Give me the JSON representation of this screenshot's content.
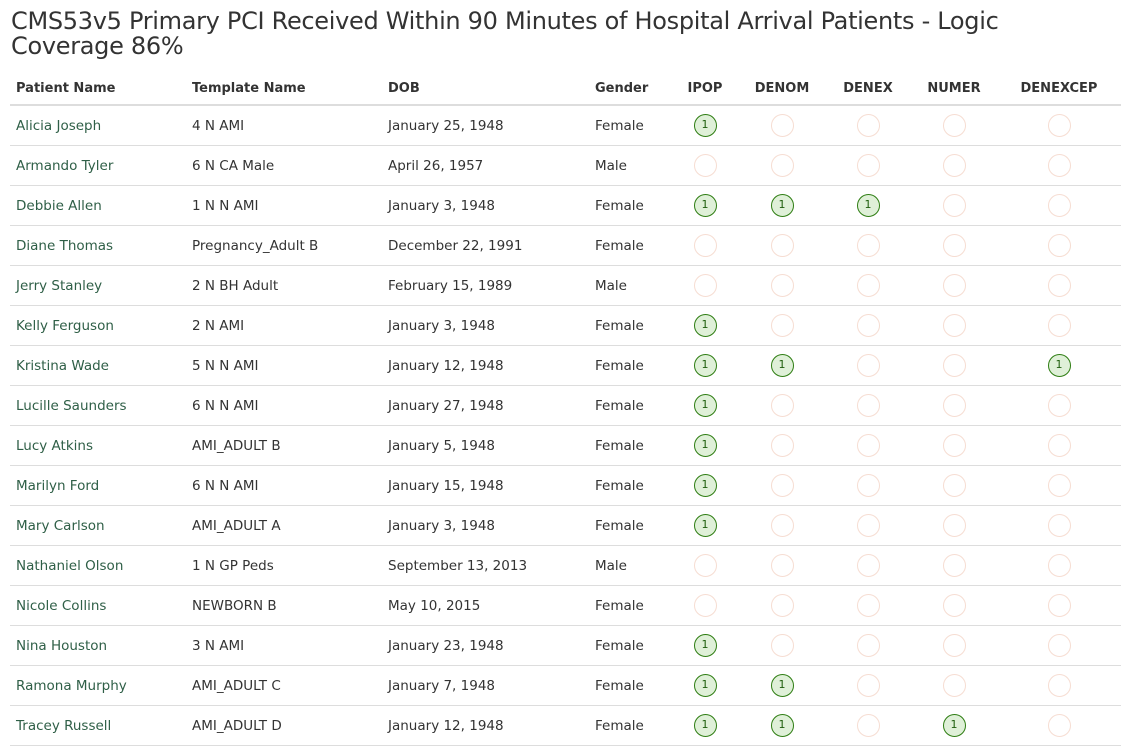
{
  "page": {
    "title": "CMS53v5 Primary PCI Received Within 90 Minutes of Hospital Arrival Patients - Logic Coverage 86%"
  },
  "colors": {
    "hit_border": "#2e7d12",
    "hit_fill": "#dff0d8",
    "miss_border": "#f6ddd2",
    "link": "#2f5f47"
  },
  "table": {
    "headers": {
      "patient_name": "Patient Name",
      "template_name": "Template Name",
      "dob": "DOB",
      "gender": "Gender",
      "ipop": "IPOP",
      "denom": "DENOM",
      "denex": "DENEX",
      "numer": "NUMER",
      "denexcep": "DENEXCEP"
    },
    "rows": [
      {
        "name": "Alicia Joseph",
        "template": "4 N AMI",
        "dob": "January 25, 1948",
        "gender": "Female",
        "ipop": "1",
        "denom": "",
        "denex": "",
        "numer": "",
        "denexcep": ""
      },
      {
        "name": "Armando Tyler",
        "template": "6 N CA Male",
        "dob": "April 26, 1957",
        "gender": "Male",
        "ipop": "",
        "denom": "",
        "denex": "",
        "numer": "",
        "denexcep": ""
      },
      {
        "name": "Debbie Allen",
        "template": "1 N N AMI",
        "dob": "January 3, 1948",
        "gender": "Female",
        "ipop": "1",
        "denom": "1",
        "denex": "1",
        "numer": "",
        "denexcep": ""
      },
      {
        "name": "Diane Thomas",
        "template": "Pregnancy_Adult B",
        "dob": "December 22, 1991",
        "gender": "Female",
        "ipop": "",
        "denom": "",
        "denex": "",
        "numer": "",
        "denexcep": ""
      },
      {
        "name": "Jerry Stanley",
        "template": "2 N BH Adult",
        "dob": "February 15, 1989",
        "gender": "Male",
        "ipop": "",
        "denom": "",
        "denex": "",
        "numer": "",
        "denexcep": ""
      },
      {
        "name": "Kelly Ferguson",
        "template": "2 N AMI",
        "dob": "January 3, 1948",
        "gender": "Female",
        "ipop": "1",
        "denom": "",
        "denex": "",
        "numer": "",
        "denexcep": ""
      },
      {
        "name": "Kristina Wade",
        "template": "5 N N AMI",
        "dob": "January 12, 1948",
        "gender": "Female",
        "ipop": "1",
        "denom": "1",
        "denex": "",
        "numer": "",
        "denexcep": "1"
      },
      {
        "name": "Lucille Saunders",
        "template": "6 N N AMI",
        "dob": "January 27, 1948",
        "gender": "Female",
        "ipop": "1",
        "denom": "",
        "denex": "",
        "numer": "",
        "denexcep": ""
      },
      {
        "name": "Lucy Atkins",
        "template": "AMI_ADULT B",
        "dob": "January 5, 1948",
        "gender": "Female",
        "ipop": "1",
        "denom": "",
        "denex": "",
        "numer": "",
        "denexcep": ""
      },
      {
        "name": "Marilyn Ford",
        "template": "6 N N AMI",
        "dob": "January 15, 1948",
        "gender": "Female",
        "ipop": "1",
        "denom": "",
        "denex": "",
        "numer": "",
        "denexcep": ""
      },
      {
        "name": "Mary Carlson",
        "template": "AMI_ADULT A",
        "dob": "January 3, 1948",
        "gender": "Female",
        "ipop": "1",
        "denom": "",
        "denex": "",
        "numer": "",
        "denexcep": ""
      },
      {
        "name": "Nathaniel Olson",
        "template": "1 N GP Peds",
        "dob": "September 13, 2013",
        "gender": "Male",
        "ipop": "",
        "denom": "",
        "denex": "",
        "numer": "",
        "denexcep": ""
      },
      {
        "name": "Nicole Collins",
        "template": "NEWBORN B",
        "dob": "May 10, 2015",
        "gender": "Female",
        "ipop": "",
        "denom": "",
        "denex": "",
        "numer": "",
        "denexcep": ""
      },
      {
        "name": "Nina Houston",
        "template": "3 N AMI",
        "dob": "January 23, 1948",
        "gender": "Female",
        "ipop": "1",
        "denom": "",
        "denex": "",
        "numer": "",
        "denexcep": ""
      },
      {
        "name": "Ramona Murphy",
        "template": "AMI_ADULT C",
        "dob": "January 7, 1948",
        "gender": "Female",
        "ipop": "1",
        "denom": "1",
        "denex": "",
        "numer": "",
        "denexcep": ""
      },
      {
        "name": "Tracey Russell",
        "template": "AMI_ADULT D",
        "dob": "January 12, 1948",
        "gender": "Female",
        "ipop": "1",
        "denom": "1",
        "denex": "",
        "numer": "1",
        "denexcep": ""
      }
    ]
  }
}
